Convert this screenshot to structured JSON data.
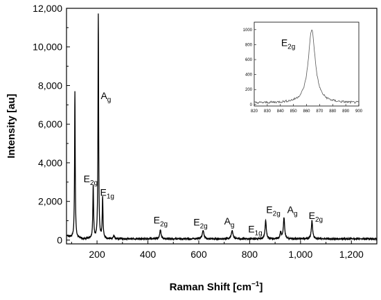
{
  "chart_data": [
    {
      "type": "line",
      "xlabel": "Raman Shift [cm",
      "xlabel_sup": "−1",
      "xlabel_end": "]",
      "ylabel": "Intensity [au]",
      "xlim": [
        80,
        1300
      ],
      "ylim": [
        -200,
        12000
      ],
      "x_ticks": [
        200,
        400,
        600,
        800,
        1000,
        1200
      ],
      "x_tick_labels": [
        "200",
        "400",
        "600",
        "800",
        "1,000",
        "1,200"
      ],
      "y_ticks": [
        0,
        2000,
        4000,
        6000,
        8000,
        10000,
        12000
      ],
      "y_tick_labels": [
        "0",
        "2,000",
        "4,000",
        "6,000",
        "8,000",
        "10,000",
        "12,000"
      ],
      "grid": false,
      "series": [
        {
          "color": "#000000",
          "peaks": [
            {
              "x": 113,
              "y": 7650,
              "w": 1.5
            },
            {
              "x": 185,
              "y": 2800,
              "w": 1.8
            },
            {
              "x": 205,
              "y": 11700,
              "w": 1.5
            },
            {
              "x": 222,
              "y": 2150,
              "w": 1.8
            },
            {
              "x": 266,
              "y": 250,
              "w": 2.5
            },
            {
              "x": 449,
              "y": 550,
              "w": 3.0
            },
            {
              "x": 617,
              "y": 480,
              "w": 4.0
            },
            {
              "x": 731,
              "y": 480,
              "w": 4.0
            },
            {
              "x": 863,
              "y": 1000,
              "w": 3.0
            },
            {
              "x": 922,
              "y": 400,
              "w": 3.0
            },
            {
              "x": 935,
              "y": 1150,
              "w": 3.0
            },
            {
              "x": 1045,
              "y": 1000,
              "w": 3.0
            }
          ],
          "baseline": 60
        }
      ],
      "annotations": [
        {
          "base": "A",
          "sub": "g",
          "x": 235,
          "y": 7300
        },
        {
          "base": "E",
          "sub": "2g",
          "x": 175,
          "y": 3000
        },
        {
          "base": "E",
          "sub": "1g",
          "x": 240,
          "y": 2300
        },
        {
          "base": "E",
          "sub": "2g",
          "x": 450,
          "y": 850
        },
        {
          "base": "E",
          "sub": "2g",
          "x": 607,
          "y": 750
        },
        {
          "base": "A",
          "sub": "g",
          "x": 720,
          "y": 800
        },
        {
          "base": "E",
          "sub": "1g",
          "x": 822,
          "y": 400
        },
        {
          "base": "E",
          "sub": "2g",
          "x": 893,
          "y": 1400
        },
        {
          "base": "A",
          "sub": "g",
          "x": 968,
          "y": 1400
        },
        {
          "base": "E",
          "sub": "2g",
          "x": 1060,
          "y": 1100
        }
      ]
    },
    {
      "type": "line",
      "role": "inset",
      "xlim": [
        820,
        900
      ],
      "ylim": [
        -20,
        1100
      ],
      "x_ticks": [
        820,
        830,
        840,
        850,
        860,
        870,
        880,
        890,
        900
      ],
      "x_tick_labels": [
        "820",
        "830",
        "840",
        "850",
        "860",
        "870",
        "880",
        "890",
        "900"
      ],
      "y_ticks": [
        0,
        200,
        400,
        600,
        800,
        1000
      ],
      "y_tick_labels": [
        "0",
        "200",
        "400",
        "600",
        "800",
        "1000"
      ],
      "series": [
        {
          "color": "#555555",
          "peak": {
            "x": 864,
            "y": 1000,
            "w": 3.2
          },
          "baseline": 20
        }
      ],
      "annotations": [
        {
          "base": "E",
          "sub": "2g",
          "x": 846,
          "y": 780
        }
      ]
    }
  ]
}
